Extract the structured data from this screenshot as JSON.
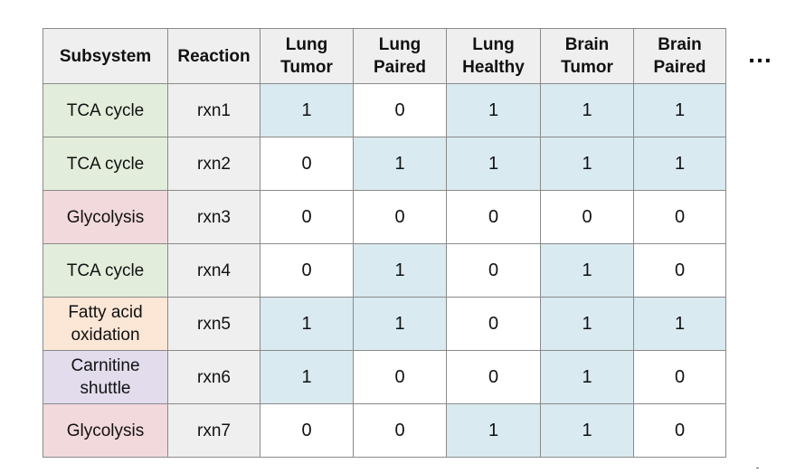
{
  "colors": {
    "header_bg": "#efefef",
    "active_cell": "#d9eaf0",
    "inactive_cell": "#ffffff",
    "subsystem": {
      "TCA cycle": "#e2eedb",
      "Glycolysis": "#f2d9dc",
      "Fatty acid oxidation": "#fce6d6",
      "Carnitine shuttle": "#e2dcec"
    }
  },
  "headers": [
    "Subsystem",
    "Reaction",
    "Lung Tumor",
    "Lung Paired",
    "Lung Healthy",
    "Brain Tumor",
    "Brain Paired"
  ],
  "header_lines": [
    [
      "Subsystem"
    ],
    [
      "Reaction"
    ],
    [
      "Lung",
      "Tumor"
    ],
    [
      "Lung",
      "Paired"
    ],
    [
      "Lung",
      "Healthy"
    ],
    [
      "Brain",
      "Tumor"
    ],
    [
      "Brain",
      "Paired"
    ]
  ],
  "more_columns_indicator": "…",
  "rows": [
    {
      "subsystem": "TCA cycle",
      "subsystem_lines": [
        "TCA cycle"
      ],
      "reaction": "rxn1",
      "values": [
        "1",
        "0",
        "1",
        "1",
        "1"
      ]
    },
    {
      "subsystem": "TCA cycle",
      "subsystem_lines": [
        "TCA cycle"
      ],
      "reaction": "rxn2",
      "values": [
        "0",
        "1",
        "1",
        "1",
        "1"
      ]
    },
    {
      "subsystem": "Glycolysis",
      "subsystem_lines": [
        "Glycolysis"
      ],
      "reaction": "rxn3",
      "values": [
        "0",
        "0",
        "0",
        "0",
        "0"
      ]
    },
    {
      "subsystem": "TCA cycle",
      "subsystem_lines": [
        "TCA cycle"
      ],
      "reaction": "rxn4",
      "values": [
        "0",
        "1",
        "0",
        "1",
        "0"
      ]
    },
    {
      "subsystem": "Fatty acid oxidation",
      "subsystem_lines": [
        "Fatty acid",
        "oxidation"
      ],
      "reaction": "rxn5",
      "values": [
        "1",
        "1",
        "0",
        "1",
        "1"
      ]
    },
    {
      "subsystem": "Carnitine shuttle",
      "subsystem_lines": [
        "Carnitine",
        "shuttle"
      ],
      "reaction": "rxn6",
      "values": [
        "1",
        "0",
        "0",
        "1",
        "0"
      ]
    },
    {
      "subsystem": "Glycolysis",
      "subsystem_lines": [
        "Glycolysis"
      ],
      "reaction": "rxn7",
      "values": [
        "0",
        "0",
        "1",
        "1",
        "0"
      ]
    }
  ]
}
